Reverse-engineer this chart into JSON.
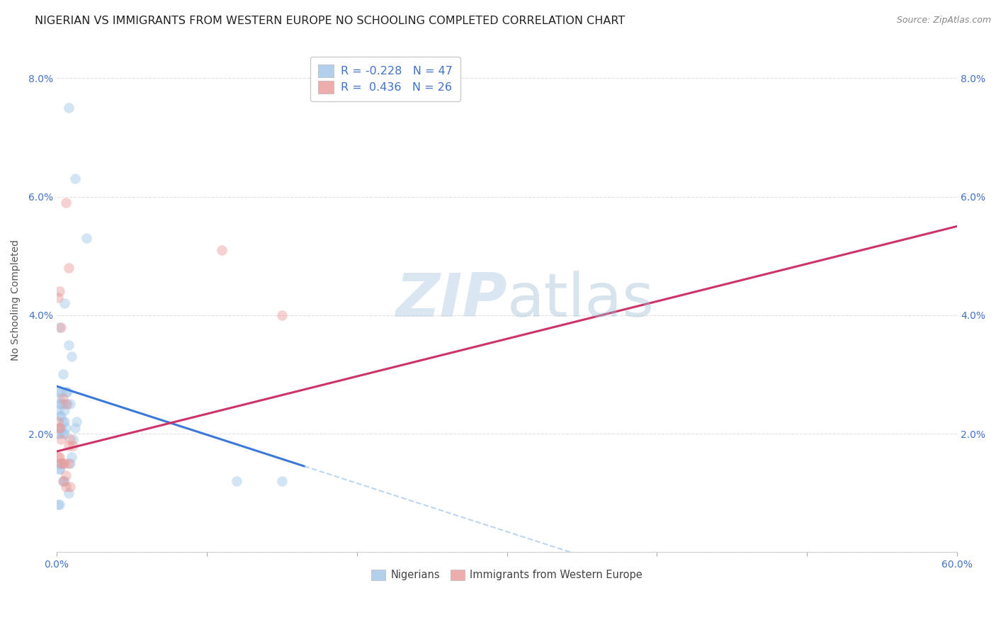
{
  "title": "NIGERIAN VS IMMIGRANTS FROM WESTERN EUROPE NO SCHOOLING COMPLETED CORRELATION CHART",
  "source": "Source: ZipAtlas.com",
  "ylabel": "No Schooling Completed",
  "xlim": [
    0.0,
    0.6
  ],
  "ylim": [
    0.0,
    0.085
  ],
  "yticks": [
    0.0,
    0.02,
    0.04,
    0.06,
    0.08
  ],
  "ytick_labels": [
    "",
    "2.0%",
    "4.0%",
    "6.0%",
    "8.0%"
  ],
  "xticks": [
    0.0,
    0.1,
    0.2,
    0.3,
    0.4,
    0.5,
    0.6
  ],
  "blue_color": "#9fc5e8",
  "pink_color": "#ea9999",
  "blue_line_color": "#3c78d8",
  "pink_line_color": "#cc3366",
  "legend_text_color": "#4472c4",
  "tick_color": "#4472c4",
  "watermark_color": "#cfe2f3",
  "blue_scatter_x": [
    0.008,
    0.012,
    0.02,
    0.002,
    0.005,
    0.008,
    0.01,
    0.003,
    0.004,
    0.006,
    0.009,
    0.001,
    0.002,
    0.003,
    0.004,
    0.005,
    0.006,
    0.007,
    0.001,
    0.002,
    0.002,
    0.003,
    0.004,
    0.005,
    0.007,
    0.001,
    0.002,
    0.002,
    0.003,
    0.004,
    0.005,
    0.012,
    0.013,
    0.009,
    0.01,
    0.011,
    0.001,
    0.002,
    0.002,
    0.003,
    0.004,
    0.005,
    0.15,
    0.12,
    0.001,
    0.002,
    0.008
  ],
  "blue_scatter_y": [
    0.075,
    0.063,
    0.053,
    0.038,
    0.042,
    0.035,
    0.033,
    0.027,
    0.03,
    0.027,
    0.025,
    0.024,
    0.023,
    0.023,
    0.022,
    0.022,
    0.021,
    0.025,
    0.027,
    0.026,
    0.025,
    0.025,
    0.025,
    0.024,
    0.027,
    0.02,
    0.021,
    0.02,
    0.021,
    0.02,
    0.02,
    0.021,
    0.022,
    0.015,
    0.016,
    0.019,
    0.015,
    0.014,
    0.014,
    0.015,
    0.012,
    0.012,
    0.012,
    0.012,
    0.008,
    0.008,
    0.01
  ],
  "pink_scatter_x": [
    0.006,
    0.008,
    0.001,
    0.002,
    0.003,
    0.004,
    0.006,
    0.001,
    0.002,
    0.002,
    0.003,
    0.009,
    0.011,
    0.008,
    0.15,
    0.001,
    0.002,
    0.003,
    0.004,
    0.005,
    0.008,
    0.11,
    0.006,
    0.004,
    0.006,
    0.009
  ],
  "pink_scatter_y": [
    0.059,
    0.048,
    0.043,
    0.044,
    0.038,
    0.026,
    0.025,
    0.022,
    0.021,
    0.021,
    0.019,
    0.019,
    0.018,
    0.018,
    0.04,
    0.016,
    0.016,
    0.015,
    0.015,
    0.015,
    0.015,
    0.051,
    0.013,
    0.012,
    0.011,
    0.011
  ],
  "blue_line_x0": 0.0,
  "blue_line_x_solid_end": 0.165,
  "blue_line_x_dashed_end": 0.52,
  "blue_line_y0": 0.028,
  "blue_line_y_solid_end": 0.0145,
  "blue_line_y_dashed_end": 0.0,
  "pink_line_x0": 0.0,
  "pink_line_x1": 0.6,
  "pink_line_y0": 0.017,
  "pink_line_y1": 0.055,
  "background_color": "#ffffff",
  "grid_color": "#e0e0e0",
  "title_fontsize": 11.5,
  "axis_label_fontsize": 10,
  "tick_fontsize": 10,
  "marker_size": 110,
  "marker_alpha": 0.45,
  "legend_r_blue": "R = -0.228",
  "legend_n_blue": "N = 47",
  "legend_r_pink": "R =  0.436",
  "legend_n_pink": "N = 26"
}
